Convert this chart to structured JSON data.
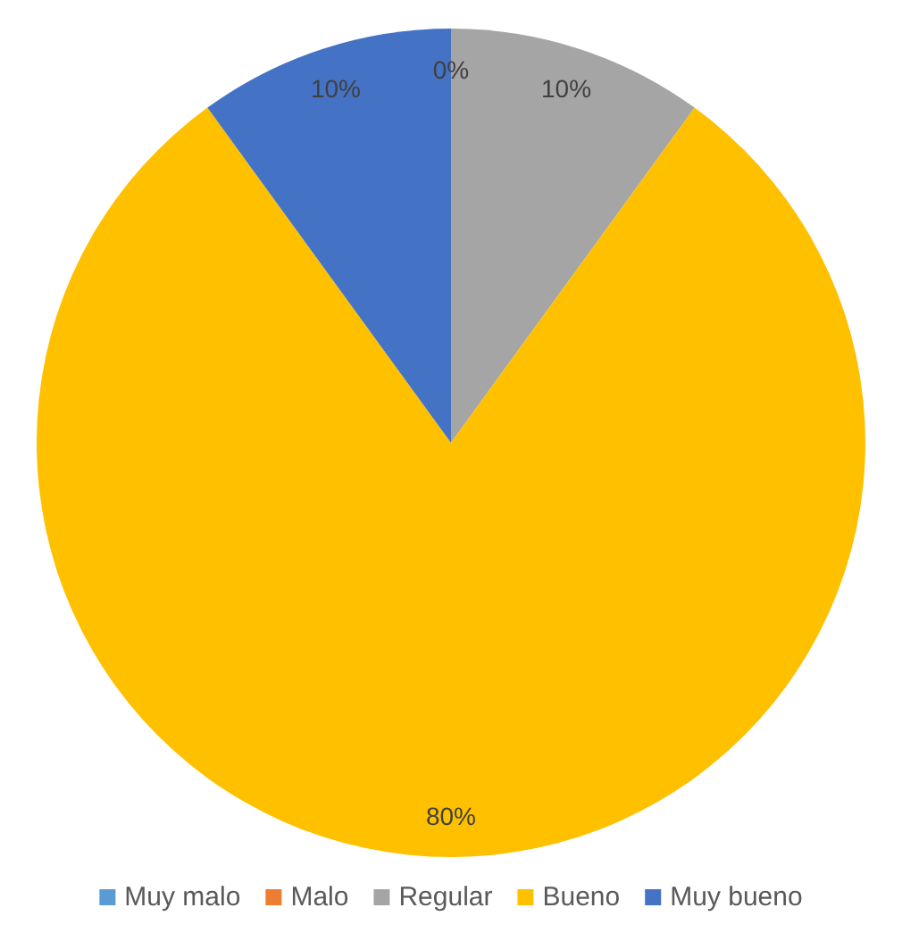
{
  "chart_data": {
    "type": "pie",
    "categories": [
      "Muy malo",
      "Malo",
      "Regular",
      "Bueno",
      "Muy bueno"
    ],
    "values": [
      0,
      0,
      10,
      80,
      10
    ],
    "colors": [
      "#5b9bd5",
      "#ed7d31",
      "#a5a5a5",
      "#ffc000",
      "#4472c4"
    ],
    "value_labels": [
      "0%",
      null,
      "10%",
      "80%",
      "10%"
    ],
    "legend": "bottom"
  }
}
